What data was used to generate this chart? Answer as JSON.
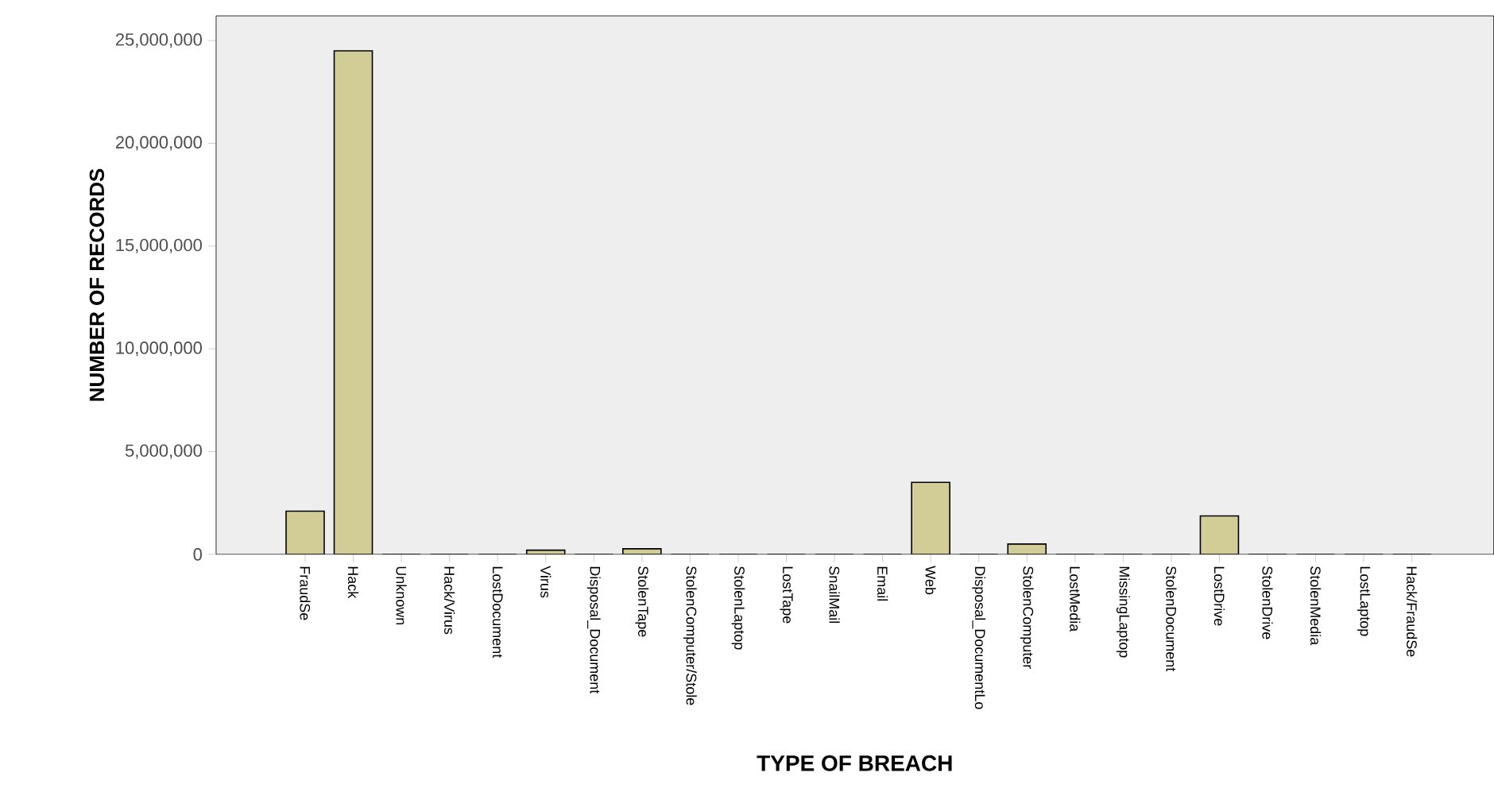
{
  "chart_data": {
    "type": "bar",
    "xlabel": "TYPE OF BREACH",
    "ylabel": "NUMBER OF RECORDS",
    "categories": [
      "FraudSe",
      "Hack",
      "Unknown",
      "Hack/Virus",
      "LostDocument",
      "Virus",
      "Disposal_Document",
      "StolenTape",
      "StolenComputer/Stole",
      "StolenLaptop",
      "LostTape",
      "SnailMail",
      "Email",
      "Web",
      "Disposal_DocumentLo",
      "StolenComputer",
      "LostMedia",
      "MissingLaptop",
      "StolenDocument",
      "LostDrive",
      "StolenDrive",
      "StolenMedia",
      "LostLaptop",
      "Hack/FraudSe"
    ],
    "values": [
      2100000,
      24500000,
      0,
      0,
      0,
      200000,
      0,
      270000,
      0,
      0,
      0,
      0,
      0,
      3500000,
      0,
      500000,
      0,
      0,
      0,
      1870000,
      0,
      0,
      0,
      0
    ],
    "color": "#d2cd96",
    "ylim": [
      0,
      26200000
    ],
    "yticks": [
      {
        "value": 0,
        "label": "0"
      },
      {
        "value": 5000000,
        "label": "5,000,000"
      },
      {
        "value": 10000000,
        "label": "10,000,000"
      },
      {
        "value": 15000000,
        "label": "15,000,000"
      },
      {
        "value": 20000000,
        "label": "20,000,000"
      },
      {
        "value": 25000000,
        "label": "25,000,000"
      }
    ],
    "grid": false
  }
}
